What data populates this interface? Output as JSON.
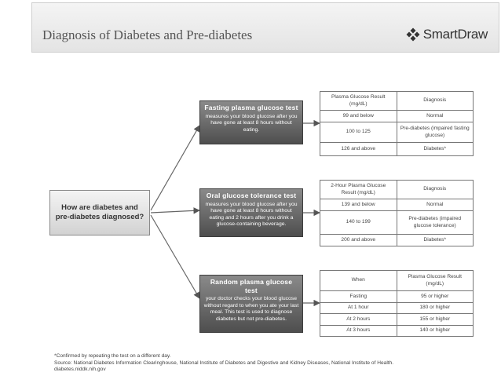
{
  "header": {
    "title": "Diagnosis of Diabetes and Pre-diabetes",
    "brand": "SmartDraw"
  },
  "root": {
    "label": "How are diabetes and pre-diabetes diagnosed?"
  },
  "tests": [
    {
      "title": "Fasting plasma glucose test",
      "description": "measures your blood glucose after you have gone at least 8 hours without eating."
    },
    {
      "title": "Oral glucose tolerance test",
      "description": "measures your blood glucose after you have gone at least 8 hours without eating and 2 hours after you drink a glucose-containing beverage."
    },
    {
      "title": "Random plasma glucose test",
      "description": "your doctor checks your blood glucose without regard to when you ate your last meal. This test is used to diagnose diabetes but not pre-diabetes."
    }
  ],
  "tables": [
    {
      "headers": [
        "Plasma Glucose Result (mg/dL)",
        "Diagnosis"
      ],
      "rows": [
        [
          "99 and below",
          "Normal"
        ],
        [
          "100 to 125",
          "Pre-diabetes (impaired fasting glucose)"
        ],
        [
          "126 and above",
          "Diabetes*"
        ]
      ]
    },
    {
      "headers": [
        "2-Hour Plasma Glucose Result (mg/dL)",
        "Diagnosis"
      ],
      "rows": [
        [
          "139 and below",
          "Normal"
        ],
        [
          "140 to 199",
          "Pre-diabetes (impaired glucose tolerance)"
        ],
        [
          "200 and above",
          "Diabetes*"
        ]
      ]
    },
    {
      "headers": [
        "When",
        "Plasma Glucose Result (mg/dL)"
      ],
      "rows": [
        [
          "Fasting",
          "95 or higher"
        ],
        [
          "At 1 hour",
          "180 or higher"
        ],
        [
          "At 2 hours",
          "155 or higher"
        ],
        [
          "At 3 hours",
          "140 or higher"
        ]
      ]
    }
  ],
  "footnote": {
    "line1": "*Confirmed by repeating the test on a different day.",
    "line2": "Source: National Diabetes Information Clearinghouse, National Institute of Diabetes and Digestive and Kidney Diseases, National Institute of Health.",
    "line3": "diabetes.niddk.nih.gov"
  }
}
